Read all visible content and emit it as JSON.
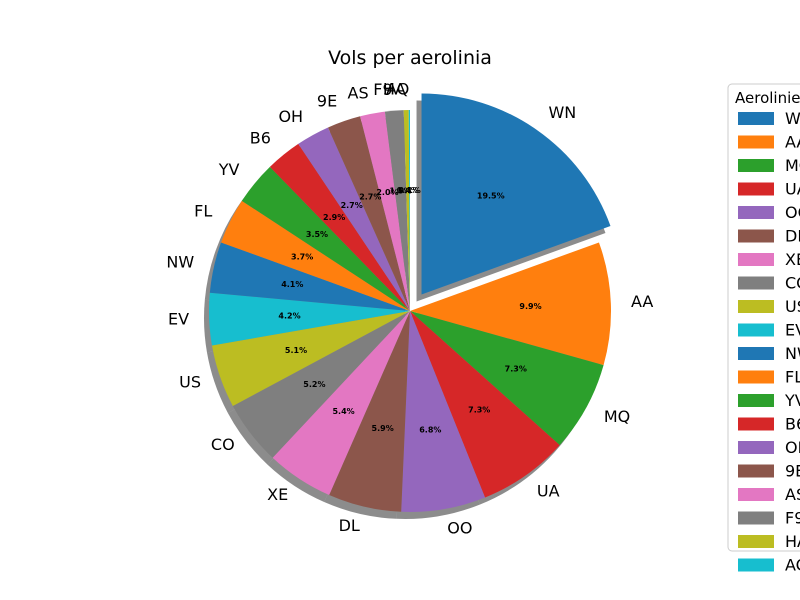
{
  "chart_data": {
    "type": "pie",
    "title": "Vols per aerolinia",
    "legend_title": "Aerolinies",
    "legend_placement": "right",
    "start_angle": 90,
    "direction": "clockwise",
    "explode": [
      "WN"
    ],
    "shadow": true,
    "categories": [
      "WN",
      "AA",
      "MQ",
      "UA",
      "OO",
      "DL",
      "XE",
      "CO",
      "US",
      "EV",
      "NW",
      "FL",
      "YV",
      "B6",
      "OH",
      "9E",
      "AS",
      "F9",
      "HA",
      "AQ"
    ],
    "values": [
      19.5,
      9.9,
      7.3,
      7.3,
      6.8,
      5.9,
      5.4,
      5.2,
      5.1,
      4.2,
      4.1,
      3.7,
      3.5,
      2.9,
      2.7,
      2.7,
      2.0,
      1.5,
      0.4,
      0.1
    ],
    "value_labels": [
      "19.5%",
      "9.9%",
      "7.3%",
      "7.3%",
      "6.8%",
      "5.9%",
      "5.4%",
      "5.2%",
      "5.1%",
      "4.2%",
      "4.1%",
      "3.7%",
      "3.5%",
      "2.9%",
      "2.7%",
      "2.7%",
      "2.0%",
      "1.5%",
      "0.4%",
      "0.1%"
    ],
    "colors": [
      "#1f77b4",
      "#ff7f0e",
      "#2ca02c",
      "#d62728",
      "#9467bd",
      "#8c564b",
      "#e377c2",
      "#7f7f7f",
      "#bcbd22",
      "#17becf",
      "#1f77b4",
      "#ff7f0e",
      "#2ca02c",
      "#d62728",
      "#9467bd",
      "#8c564b",
      "#e377c2",
      "#7f7f7f",
      "#bcbd22",
      "#17becf"
    ]
  }
}
